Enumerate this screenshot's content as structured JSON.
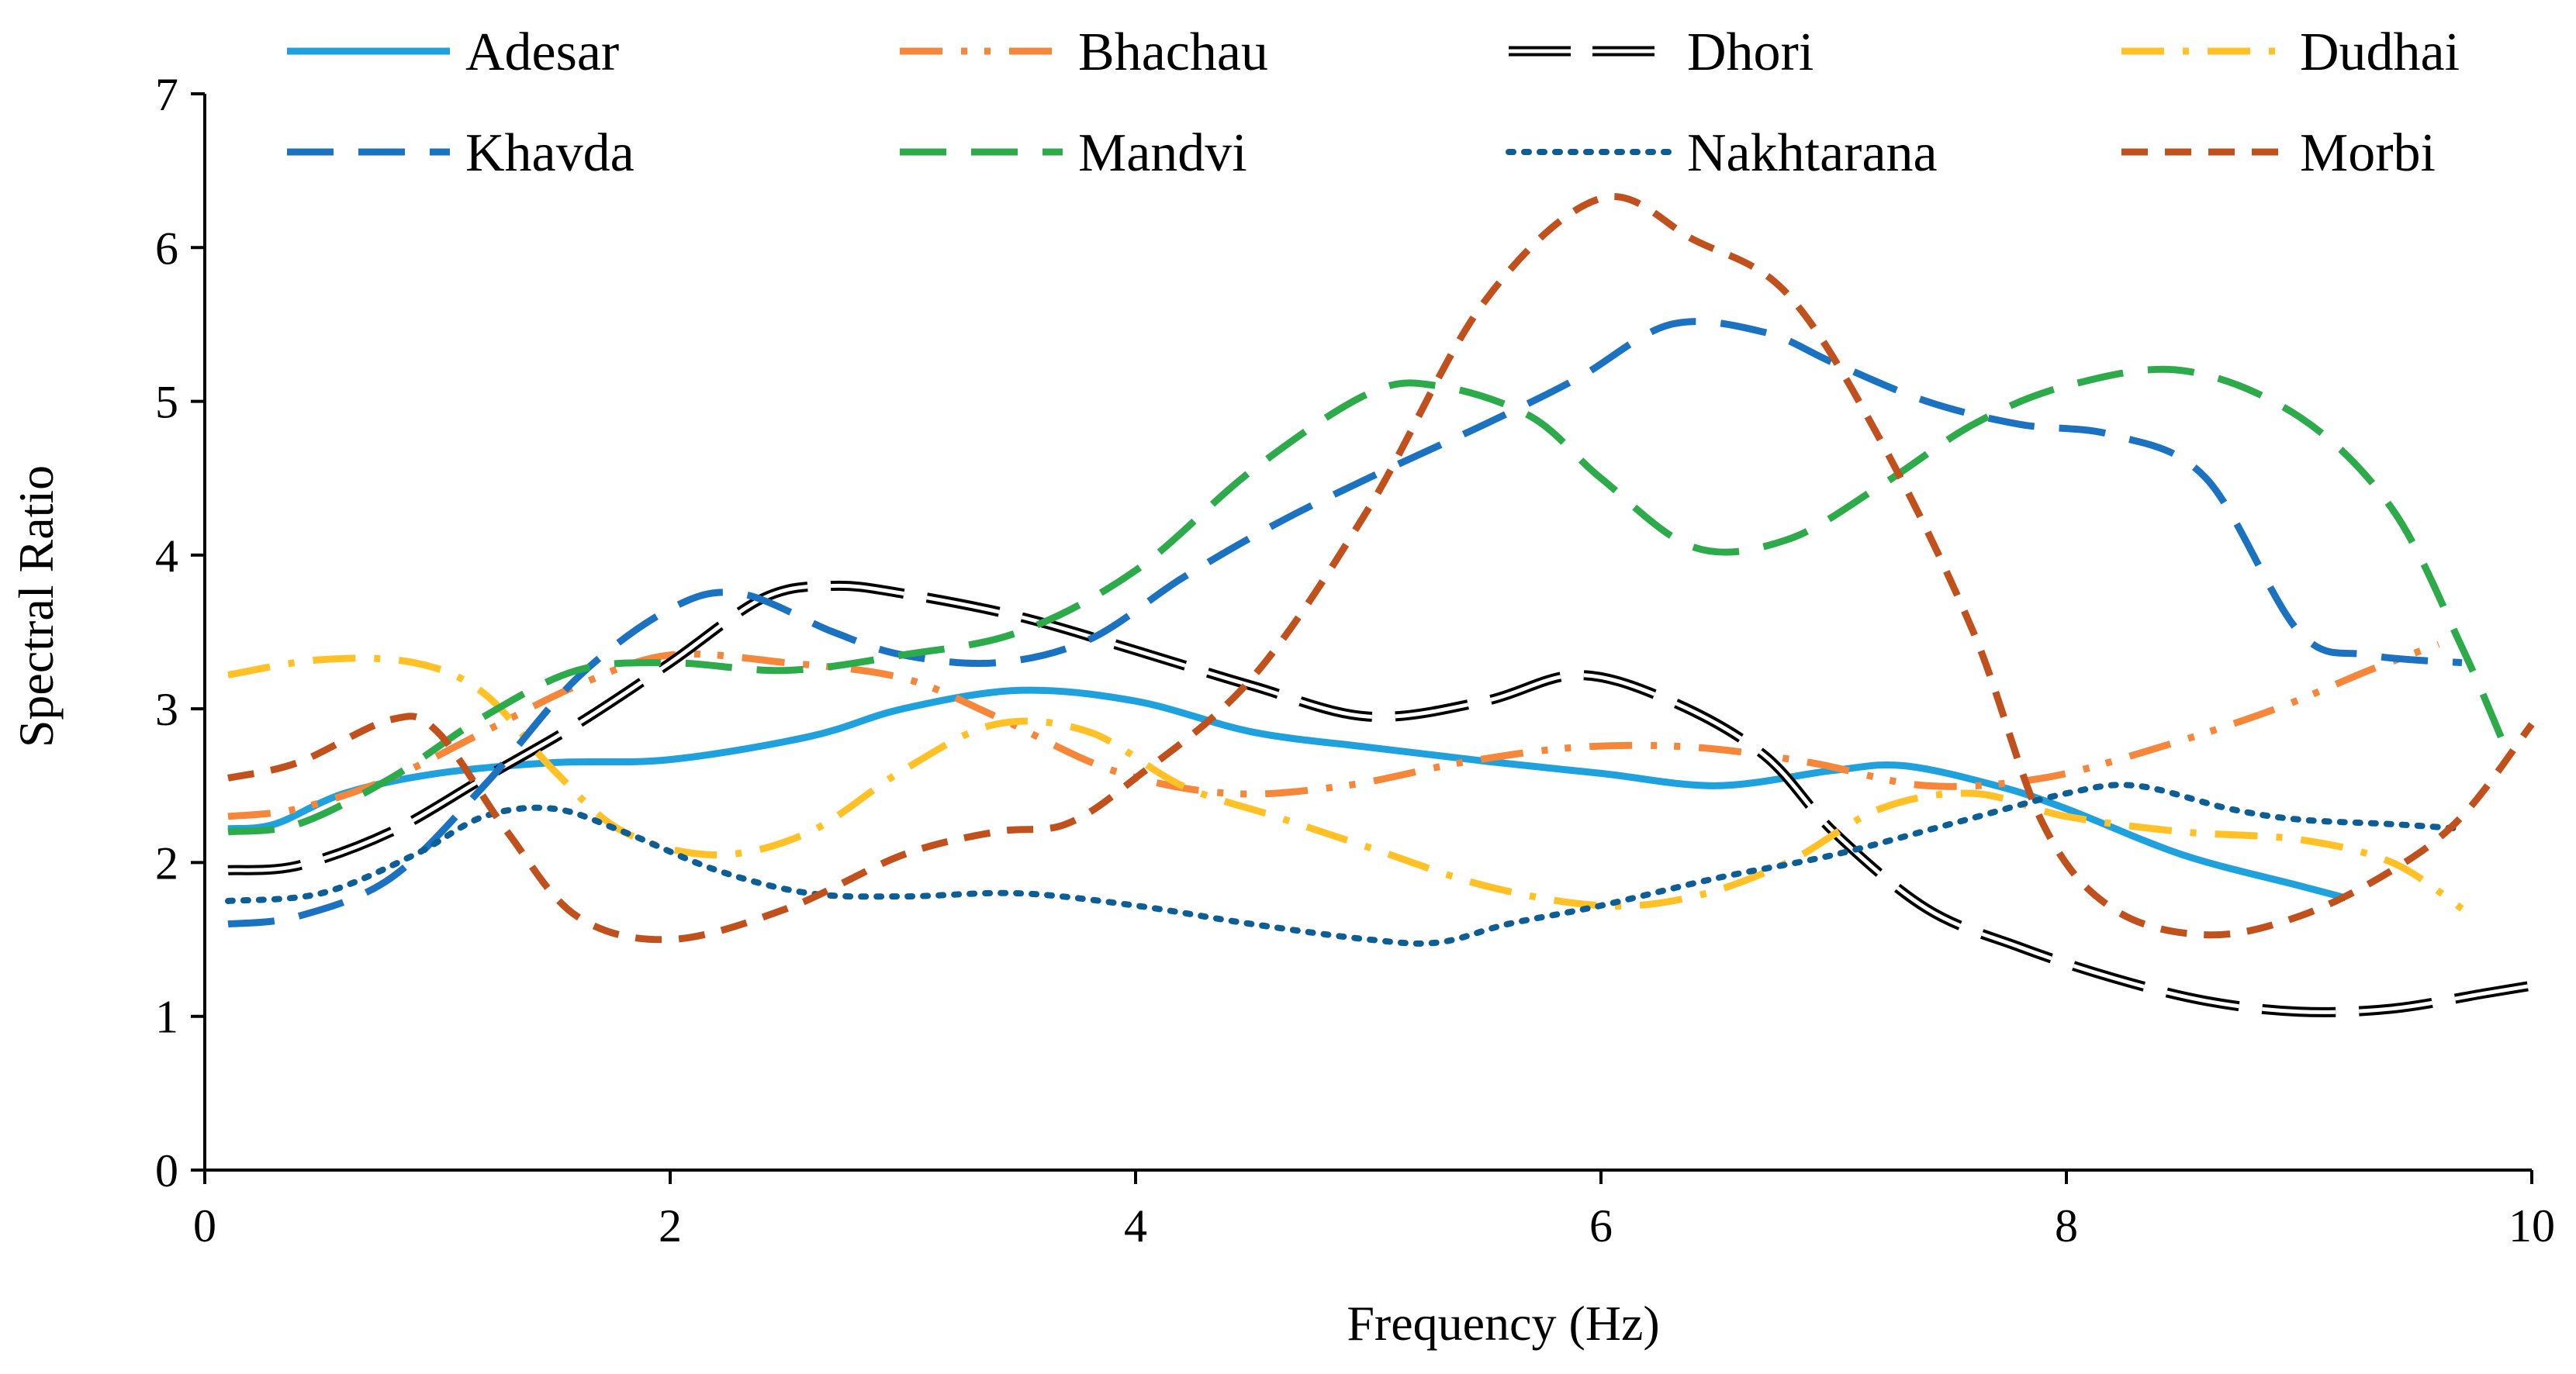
{
  "chart_data": {
    "type": "line",
    "title": "",
    "xlabel": "Frequency (Hz)",
    "ylabel": "Spectral Ratio",
    "xlim": [
      0,
      10
    ],
    "ylim": [
      0,
      7
    ],
    "xticks": [
      0,
      2,
      4,
      6,
      8,
      10
    ],
    "yticks": [
      0,
      1,
      2,
      3,
      4,
      5,
      6,
      7
    ],
    "grid": false,
    "legend": "top",
    "series": [
      {
        "name": "Adesar",
        "color": "#1ea1dc",
        "dash": "solid",
        "x": [
          0.1,
          0.3,
          0.6,
          1.0,
          1.5,
          2.0,
          2.6,
          3.0,
          3.5,
          4.0,
          4.5,
          5.0,
          5.5,
          6.0,
          6.5,
          7.0,
          7.3,
          7.7,
          8.0,
          8.5,
          9.0,
          9.2
        ],
        "y": [
          2.22,
          2.25,
          2.45,
          2.58,
          2.65,
          2.67,
          2.82,
          3.0,
          3.12,
          3.05,
          2.85,
          2.75,
          2.66,
          2.58,
          2.5,
          2.6,
          2.63,
          2.5,
          2.35,
          2.05,
          1.85,
          1.77
        ]
      },
      {
        "name": "Bhachau",
        "color": "#f5863a",
        "dash": "dashdotdot",
        "x": [
          0.1,
          0.4,
          0.8,
          1.2,
          1.6,
          2.0,
          2.5,
          3.0,
          3.4,
          3.9,
          4.4,
          4.9,
          5.4,
          5.9,
          6.4,
          6.9,
          7.4,
          7.9,
          8.4,
          8.9,
          9.3,
          9.6
        ],
        "y": [
          2.3,
          2.35,
          2.55,
          2.85,
          3.15,
          3.35,
          3.3,
          3.2,
          2.95,
          2.6,
          2.45,
          2.5,
          2.65,
          2.75,
          2.75,
          2.65,
          2.5,
          2.55,
          2.75,
          3.0,
          3.25,
          3.42
        ]
      },
      {
        "name": "Dhori",
        "color": "#000000",
        "dash": "longdash",
        "x": [
          0.1,
          0.4,
          0.8,
          1.2,
          1.6,
          2.0,
          2.4,
          2.7,
          3.0,
          3.5,
          4.0,
          4.5,
          5.0,
          5.5,
          5.9,
          6.3,
          6.7,
          7.0,
          7.4,
          7.8,
          8.2,
          8.6,
          9.0,
          9.4,
          9.8,
          10.0
        ],
        "y": [
          1.95,
          1.98,
          2.2,
          2.55,
          2.9,
          3.3,
          3.72,
          3.8,
          3.75,
          3.6,
          3.38,
          3.15,
          2.95,
          3.05,
          3.22,
          3.05,
          2.7,
          2.2,
          1.7,
          1.45,
          1.25,
          1.1,
          1.03,
          1.05,
          1.15,
          1.2
        ]
      },
      {
        "name": "Dudhai",
        "color": "#ffc125",
        "dash": "dashdot",
        "x": [
          0.1,
          0.5,
          0.9,
          1.2,
          1.5,
          1.8,
          2.2,
          2.6,
          3.0,
          3.4,
          3.8,
          4.2,
          4.6,
          5.0,
          5.5,
          6.0,
          6.4,
          6.8,
          7.2,
          7.6,
          8.0,
          8.5,
          9.0,
          9.4,
          9.7
        ],
        "y": [
          3.22,
          3.32,
          3.3,
          3.1,
          2.6,
          2.2,
          2.05,
          2.2,
          2.6,
          2.9,
          2.85,
          2.5,
          2.3,
          2.1,
          1.85,
          1.72,
          1.78,
          2.0,
          2.35,
          2.45,
          2.3,
          2.2,
          2.15,
          2.0,
          1.7
        ]
      },
      {
        "name": "Khavda",
        "color": "#1b72c0",
        "dash": "dash",
        "x": [
          0.1,
          0.4,
          0.8,
          1.2,
          1.6,
          2.0,
          2.3,
          2.7,
          3.0,
          3.4,
          3.8,
          4.2,
          4.6,
          5.0,
          5.5,
          5.9,
          6.3,
          6.7,
          7.0,
          7.4,
          7.8,
          8.2,
          8.6,
          9.0,
          9.3,
          9.7
        ],
        "y": [
          1.6,
          1.65,
          1.9,
          2.5,
          3.2,
          3.65,
          3.75,
          3.5,
          3.35,
          3.3,
          3.45,
          3.85,
          4.2,
          4.5,
          4.85,
          5.15,
          5.5,
          5.45,
          5.25,
          5.0,
          4.85,
          4.78,
          4.5,
          3.5,
          3.35,
          3.3
        ]
      },
      {
        "name": "Mandvi",
        "color": "#2daa4a",
        "dash": "dash",
        "x": [
          0.1,
          0.4,
          0.8,
          1.2,
          1.6,
          2.0,
          2.5,
          3.0,
          3.5,
          4.0,
          4.5,
          5.0,
          5.3,
          5.7,
          6.0,
          6.4,
          6.8,
          7.2,
          7.6,
          8.0,
          8.5,
          9.0,
          9.4,
          9.7,
          9.9
        ],
        "y": [
          2.2,
          2.25,
          2.55,
          2.95,
          3.25,
          3.3,
          3.25,
          3.35,
          3.5,
          3.9,
          4.55,
          5.05,
          5.1,
          4.9,
          4.5,
          4.05,
          4.1,
          4.45,
          4.85,
          5.1,
          5.2,
          4.9,
          4.3,
          3.4,
          2.7
        ]
      },
      {
        "name": "Nakhtarana",
        "color": "#0e5e96",
        "dash": "dot",
        "x": [
          0.1,
          0.5,
          0.9,
          1.2,
          1.5,
          1.8,
          2.2,
          2.6,
          3.0,
          3.5,
          4.0,
          4.5,
          5.0,
          5.3,
          5.6,
          6.0,
          6.5,
          7.0,
          7.5,
          8.0,
          8.3,
          8.7,
          9.0,
          9.4,
          9.7
        ],
        "y": [
          1.75,
          1.8,
          2.05,
          2.3,
          2.35,
          2.2,
          1.95,
          1.8,
          1.78,
          1.8,
          1.72,
          1.6,
          1.5,
          1.48,
          1.6,
          1.72,
          1.9,
          2.05,
          2.25,
          2.45,
          2.5,
          2.35,
          2.28,
          2.25,
          2.22
        ]
      },
      {
        "name": "Morbi",
        "color": "#c0501c",
        "dash": "shortdash",
        "x": [
          0.1,
          0.4,
          0.8,
          1.0,
          1.3,
          1.6,
          2.0,
          2.5,
          3.0,
          3.4,
          3.7,
          4.0,
          4.5,
          5.0,
          5.5,
          6.0,
          6.4,
          6.8,
          7.2,
          7.6,
          7.9,
          8.2,
          8.6,
          9.0,
          9.4,
          9.7,
          10.0
        ],
        "y": [
          2.55,
          2.65,
          2.93,
          2.85,
          2.2,
          1.65,
          1.5,
          1.7,
          2.05,
          2.2,
          2.25,
          2.55,
          3.2,
          4.3,
          5.65,
          6.32,
          6.05,
          5.7,
          4.75,
          3.5,
          2.25,
          1.7,
          1.53,
          1.65,
          1.95,
          2.3,
          2.9
        ]
      }
    ]
  }
}
